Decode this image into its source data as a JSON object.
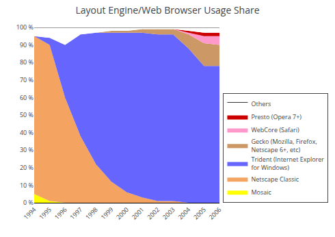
{
  "chart_data": {
    "type": "area",
    "title": "Layout Engine/Web Browser Usage Share",
    "stacked": true,
    "x": [
      1994,
      1995,
      1996,
      1997,
      1998,
      1999,
      2000,
      2001,
      2002,
      2003,
      2004,
      2005,
      2006
    ],
    "series": [
      {
        "name": "Mosaic",
        "color": "#FFFF00",
        "values": [
          5,
          1,
          0,
          0,
          0,
          0,
          0,
          0,
          0,
          0,
          0,
          0,
          0
        ]
      },
      {
        "name": "Netscape Classic",
        "color": "#F4A460",
        "values": [
          90,
          89,
          60,
          38,
          22,
          12,
          6,
          3,
          1,
          1,
          0,
          0,
          0
        ]
      },
      {
        "name": "Trident (Internet Explorer\nfor Windows)",
        "color": "#6666FF",
        "values": [
          0,
          4,
          30,
          58,
          75,
          85,
          91,
          94,
          95,
          95,
          88,
          78,
          78
        ]
      },
      {
        "name": "Gecko (Mozilla, Firefox,\nNetscape 6+, etc)",
        "color": "#CC9966",
        "values": [
          0,
          0,
          0,
          0,
          0,
          1,
          1,
          2,
          3,
          3,
          8,
          13,
          12
        ]
      },
      {
        "name": "WebCore (Safari)",
        "color": "#FF99CC",
        "values": [
          0,
          0,
          0,
          0,
          0,
          0,
          0,
          0,
          0,
          0,
          1,
          4,
          5
        ]
      },
      {
        "name": "Presto (Opera 7+)",
        "color": "#CC0000",
        "values": [
          0,
          0,
          0,
          0,
          0,
          0,
          0,
          0,
          0,
          0,
          1,
          2,
          2
        ]
      },
      {
        "name": "Others",
        "color": "#FFFFFF",
        "values": [
          5,
          6,
          10,
          4,
          3,
          2,
          2,
          1,
          1,
          1,
          2,
          3,
          3
        ]
      }
    ],
    "xlim": [
      1994,
      2006
    ],
    "xticks": [
      1994,
      1995,
      1996,
      1997,
      1998,
      1999,
      2000,
      2001,
      2002,
      2003,
      2004,
      2005,
      2006
    ],
    "ylim": [
      0,
      100
    ],
    "yticks": [
      {
        "value": 0,
        "label": "0 %"
      },
      {
        "value": 10,
        "label": "10 %"
      },
      {
        "value": 20,
        "label": "20 %"
      },
      {
        "value": 30,
        "label": "30 %"
      },
      {
        "value": 40,
        "label": "40 %"
      },
      {
        "value": 50,
        "label": "50 %"
      },
      {
        "value": 60,
        "label": "60 %"
      },
      {
        "value": 70,
        "label": "70 %"
      },
      {
        "value": 80,
        "label": "80 %"
      },
      {
        "value": 90,
        "label": "90 %"
      },
      {
        "value": 100,
        "label": "100 %"
      }
    ],
    "grid": "x",
    "legend": "lower right"
  }
}
